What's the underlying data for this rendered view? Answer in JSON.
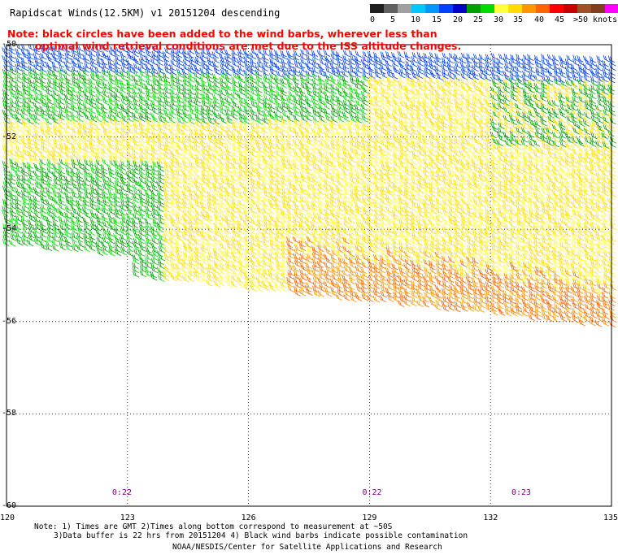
{
  "header": {
    "title": "Rapidscat Winds(12.5KM) v1 20151204 descending"
  },
  "note": {
    "line1": "Note: black circles have been added to the wind barbs, wherever less than",
    "line2": "optimal wind retrieval conditions are met due to the ISS altitude changes."
  },
  "legend": {
    "colors": [
      "#202020",
      "#606060",
      "#a0a0a0",
      "#00c8ff",
      "#0096ff",
      "#0040ff",
      "#0000c8",
      "#00a000",
      "#00dc00",
      "#ffff40",
      "#ffdc00",
      "#ff9600",
      "#ff6400",
      "#ff0000",
      "#c80000",
      "#a05028",
      "#804020",
      "#ff00ff",
      "#b400c8",
      "#6400b4",
      "#320080"
    ],
    "labels": [
      "0",
      "5",
      "10",
      "15",
      "20",
      "25",
      "30",
      "35",
      "40",
      "45",
      ">50",
      "knots"
    ],
    "label_offsets": [
      0,
      25,
      50,
      76,
      102,
      127,
      152,
      176,
      202,
      227,
      250,
      274
    ]
  },
  "map": {
    "lat_labels": [
      "-50",
      "-52",
      "-54",
      "-56",
      "-58",
      "-60"
    ],
    "lat_values": [
      -50,
      -52,
      -54,
      -56,
      -58,
      -60
    ],
    "lon_labels": [
      "120",
      "123",
      "126",
      "129",
      "132",
      "135"
    ],
    "lon_values": [
      120,
      123,
      126,
      129,
      132,
      135
    ],
    "time_labels": [
      "0:22",
      "0:22",
      "0:23"
    ],
    "time_lons": [
      122.7,
      128.9,
      132.6
    ],
    "extent": {
      "lon": [
        120,
        135
      ],
      "lat": [
        -60,
        -50
      ]
    }
  },
  "footer": {
    "line1": "Note: 1) Times are GMT 2)Times along bottom correspond to measurement at ~50S",
    "line2": "3)Data buffer is 22 hrs from 20151204 4) Black wind barbs indicate possible contamination",
    "line3": "NOAA/NESDIS/Center for Satellite Applications and Research"
  }
}
